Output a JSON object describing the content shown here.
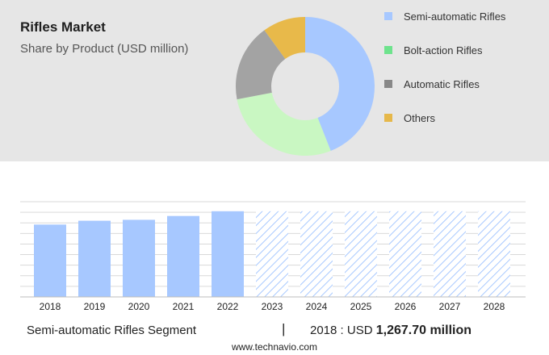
{
  "header": {
    "title": "Rifles Market",
    "subtitle": "Share by Product (USD million)"
  },
  "legend": [
    {
      "label": "Semi-automatic Rifles",
      "color": "#a7c8ff"
    },
    {
      "label": "Bolt-action Rifles",
      "color": "#6ee38d"
    },
    {
      "label": "Automatic Rifles",
      "color": "#888888"
    },
    {
      "label": "Others",
      "color": "#e6b84a"
    }
  ],
  "footer": {
    "segment": "Semi-automatic Rifles Segment",
    "divider": "|",
    "year_prefix": "2018 : USD ",
    "value": "1,267.70 million",
    "source": "www.technavio.com"
  },
  "chart_data": [
    {
      "type": "pie",
      "title": "Rifles Market",
      "subtitle": "Share by Product (USD million)",
      "categories": [
        "Semi-automatic Rifles",
        "Bolt-action Rifles",
        "Automatic Rifles",
        "Others"
      ],
      "values": [
        44,
        28,
        18,
        10
      ],
      "colors": [
        "#a7c8ff",
        "#c9f7c2",
        "#a3a3a3",
        "#e8b94a"
      ],
      "donut": true,
      "legend": "right"
    },
    {
      "type": "bar",
      "categories": [
        "2018",
        "2019",
        "2020",
        "2021",
        "2022",
        "2023",
        "2024",
        "2025",
        "2026",
        "2027",
        "2028"
      ],
      "values": [
        76,
        80,
        81,
        85,
        90,
        90,
        90,
        90,
        90,
        90,
        90
      ],
      "forecast_from": "2023",
      "ylim": [
        0,
        100
      ],
      "grid": true,
      "colors": {
        "actual": "#a7c8ff",
        "forecast_hatch": "#a7c8ff"
      }
    }
  ]
}
